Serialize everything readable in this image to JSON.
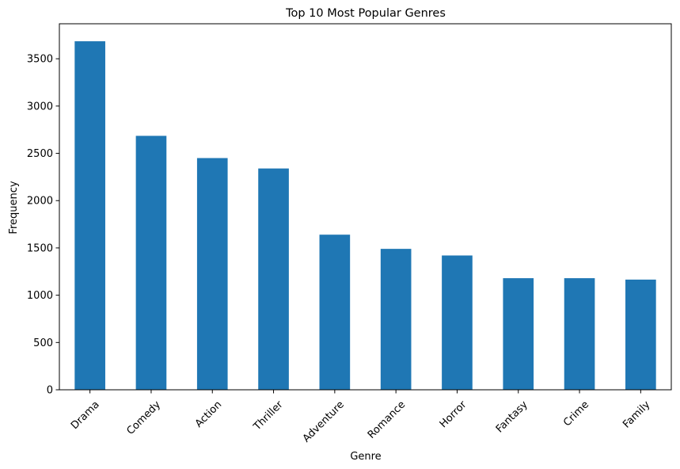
{
  "chart_data": {
    "type": "bar",
    "title": "Top 10 Most Popular Genres",
    "xlabel": "Genre",
    "ylabel": "Frequency",
    "categories": [
      "Drama",
      "Comedy",
      "Action",
      "Thriller",
      "Adventure",
      "Romance",
      "Horror",
      "Fantasy",
      "Crime",
      "Family"
    ],
    "values": [
      3685,
      2685,
      2450,
      2340,
      1640,
      1490,
      1420,
      1180,
      1180,
      1165
    ],
    "ylim": [
      0,
      3870
    ],
    "yticks": [
      0,
      500,
      1000,
      1500,
      2000,
      2500,
      3000,
      3500
    ],
    "ytick_labels": [
      "0",
      "500",
      "1000",
      "1500",
      "2000",
      "2500",
      "3000",
      "3500"
    ],
    "xtick_rotation": 45,
    "grid": false,
    "legend": "none",
    "bar_color": "#1f77b4",
    "axis_color": "#000000"
  }
}
